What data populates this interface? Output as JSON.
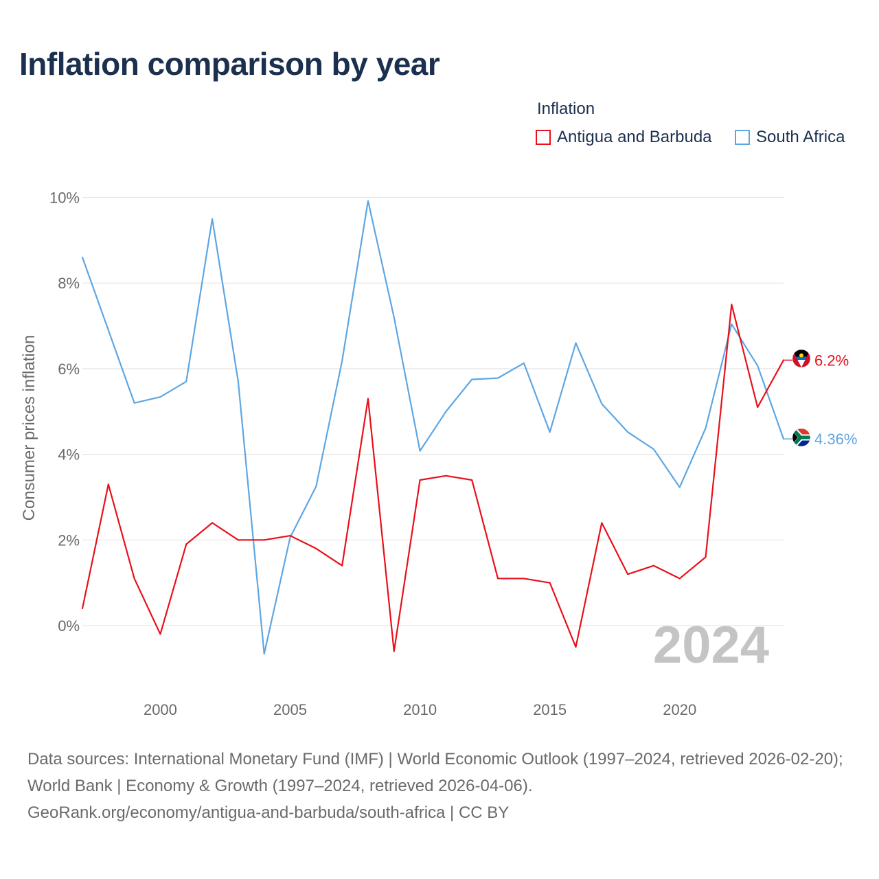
{
  "title": "Inflation comparison by year",
  "legend": {
    "title": "Inflation",
    "items": [
      {
        "label": "Antigua and Barbuda",
        "color": "#e8101a"
      },
      {
        "label": "South Africa",
        "color": "#5ea6e2"
      }
    ]
  },
  "chart_data": {
    "type": "line",
    "title": "Inflation comparison by year",
    "xlabel": "",
    "ylabel": "Consumer prices inflation",
    "x": [
      1997,
      1998,
      1999,
      2000,
      2001,
      2002,
      2003,
      2004,
      2005,
      2006,
      2007,
      2008,
      2009,
      2010,
      2011,
      2012,
      2013,
      2014,
      2015,
      2016,
      2017,
      2018,
      2019,
      2020,
      2021,
      2022,
      2023,
      2024
    ],
    "xlim": [
      1997,
      2024
    ],
    "ylim": [
      -1.5,
      10.5
    ],
    "x_ticks": [
      "2000",
      "2005",
      "2010",
      "2015",
      "2020"
    ],
    "y_ticks": [
      "0%",
      "2%",
      "4%",
      "6%",
      "8%",
      "10%"
    ],
    "grid": true,
    "year_watermark": "2024",
    "series": [
      {
        "name": "Antigua and Barbuda",
        "color": "#e8101a",
        "end_label": "6.2%",
        "values": [
          0.4,
          3.3,
          1.1,
          -0.2,
          1.9,
          2.4,
          2.0,
          2.0,
          2.1,
          1.8,
          1.4,
          5.3,
          -0.6,
          3.4,
          3.5,
          3.4,
          1.1,
          1.1,
          1.0,
          -0.5,
          2.4,
          1.2,
          1.4,
          1.1,
          1.6,
          7.5,
          5.1,
          6.2
        ]
      },
      {
        "name": "South Africa",
        "color": "#5ea6e2",
        "end_label": "4.36%",
        "values": [
          8.6,
          6.9,
          5.2,
          5.34,
          5.7,
          9.5,
          5.7,
          -0.66,
          2.06,
          3.25,
          6.18,
          9.92,
          7.2,
          4.08,
          5.0,
          5.75,
          5.78,
          6.13,
          4.52,
          6.6,
          5.18,
          4.52,
          4.12,
          3.23,
          4.61,
          7.04,
          6.07,
          4.36
        ]
      }
    ]
  },
  "footer": {
    "line1": "Data sources: International Monetary Fund (IMF) | World Economic Outlook (1997–2024, retrieved 2026-02-20); World Bank | Economy & Growth (1997–2024, retrieved 2026-04-06).",
    "line2": "GeoRank.org/economy/antigua-and-barbuda/south-africa | CC BY"
  }
}
